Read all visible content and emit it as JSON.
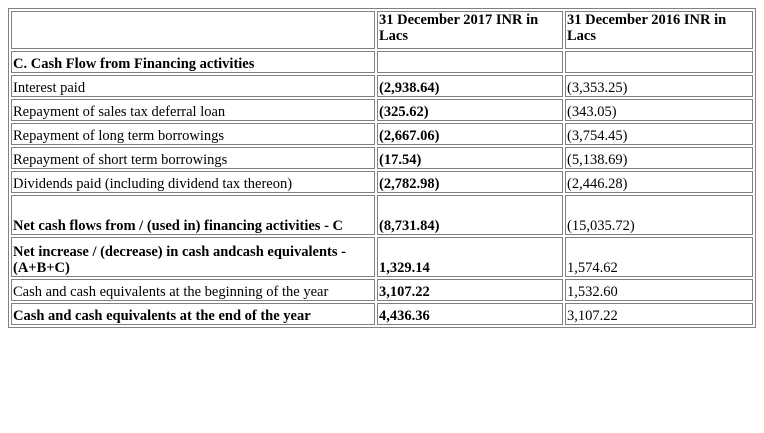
{
  "header": {
    "col_2017": "31 December 2017 INR in Lacs",
    "col_2016": "31 December 2016 INR in Lacs"
  },
  "section": {
    "title": "C. Cash Flow from Financing activities"
  },
  "rows": [
    {
      "label": "Interest paid",
      "v2017": "(2,938.64)",
      "v2016": "(3,353.25)"
    },
    {
      "label": "Repayment of sales tax deferral loan",
      "v2017": "(325.62)",
      "v2016": "(343.05)"
    },
    {
      "label": "Repayment of long term borrowings",
      "v2017": "(2,667.06)",
      "v2016": "(3,754.45)"
    },
    {
      "label": "Repayment of short term borrowings",
      "v2017": "(17.54)",
      "v2016": "(5,138.69)"
    },
    {
      "label": "Dividends paid (including dividend tax thereon)",
      "v2017": "(2,782.98)",
      "v2016": "(2,446.28)"
    },
    {
      "label": "Net cash flows from / (used in) financing activities - C",
      "v2017": "(8,731.84)",
      "v2016": "(15,035.72)"
    },
    {
      "label": "Net increase / (decrease) in cash andcash equivalents -(A+B+C)",
      "v2017": "1,329.14",
      "v2016": "1,574.62"
    },
    {
      "label": "Cash and cash equivalents at the beginning of the year",
      "v2017": "3,107.22",
      "v2016": "1,532.60"
    },
    {
      "label": "Cash and cash equivalents at the end of the year",
      "v2017": "4,436.36",
      "v2016": "3,107.22"
    }
  ]
}
